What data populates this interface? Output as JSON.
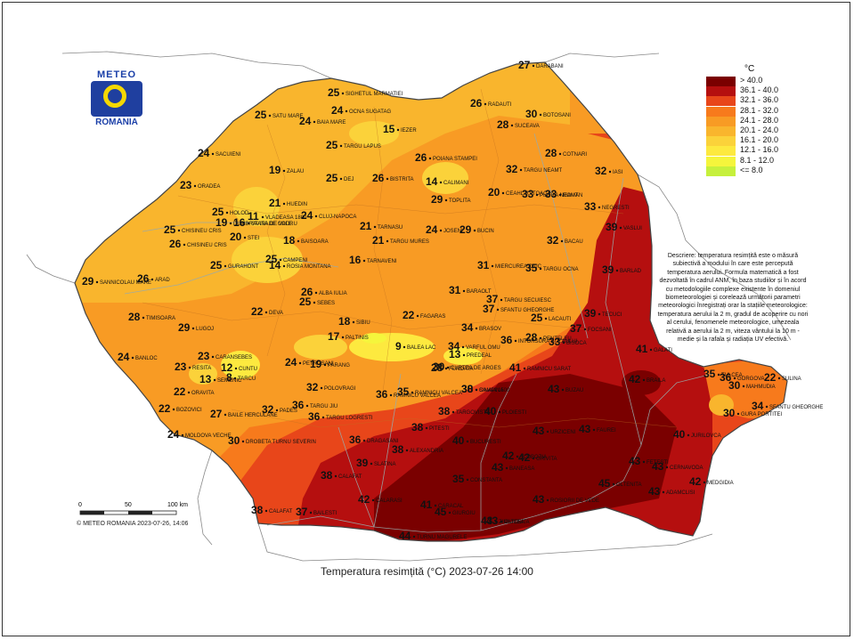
{
  "logo": {
    "top": "METEO",
    "bottom": "ROMANIA"
  },
  "legend": {
    "unit": "°C",
    "classes": [
      {
        "label": "> 40.0",
        "color": "#7a0000"
      },
      {
        "label": "36.1 - 40.0",
        "color": "#b50f0f"
      },
      {
        "label": "32.1 - 36.0",
        "color": "#e8461a"
      },
      {
        "label": "28.1 - 32.0",
        "color": "#f77a1c"
      },
      {
        "label": "24.1 - 28.0",
        "color": "#f89b24"
      },
      {
        "label": "20.1 - 24.0",
        "color": "#f9b52d"
      },
      {
        "label": "16.1 - 20.0",
        "color": "#fbd23a"
      },
      {
        "label": "12.1 - 16.0",
        "color": "#fde93f"
      },
      {
        "label": "8.1 - 12.0",
        "color": "#f5f53c"
      },
      {
        "label": "<= 8.0",
        "color": "#c6f03c"
      }
    ]
  },
  "description": "Descriere: temperatura resimțită este o măsură subiectivă a modului în care este percepută temperatura aerului. Formula matematică a fost dezvoltată în cadrul ANM, în baza studiilor și în acord cu metodologiile complexe existente în domeniul biometeorologiei și corelează următorii parametri meteorologici înregistrați orar la stațiile meteorologice: temperatura aerului la 2 m, gradul de acoperire cu nori al cerului, fenomenele meteorologice, umezeala relativă a aerului la 2 m, viteza vântului la 10 m - medie și la rafala și radiația UV efectivă.",
  "caption": "Temperatura resimțită (°C) 2023-07-26 14:00",
  "copyright": "© METEO ROMANIA 2023-07-26, 14:06",
  "scale_bar": {
    "ticks": [
      "0",
      "50",
      "100 km"
    ]
  },
  "stations": [
    {
      "v": "27",
      "name": "DARABANI"
    },
    {
      "v": "26",
      "name": "RADAUTI"
    },
    {
      "v": "30",
      "name": "BOTOSANI"
    },
    {
      "v": "28",
      "name": "SUCEAVA"
    },
    {
      "v": "25",
      "name": "SIGHETUL MARMATIEI"
    },
    {
      "v": "25",
      "name": "SATU MARE"
    },
    {
      "v": "24",
      "name": "BAIA MARE"
    },
    {
      "v": "24",
      "name": "OCNA SUGATAG"
    },
    {
      "v": "15",
      "name": "IEZER"
    },
    {
      "v": "25",
      "name": "TARGU LAPUS"
    },
    {
      "v": "26",
      "name": "POIANA STAMPEI"
    },
    {
      "v": "28",
      "name": "COTNARI"
    },
    {
      "v": "32",
      "name": "TARGU NEAMT"
    },
    {
      "v": "32",
      "name": "IASI"
    },
    {
      "v": "24",
      "name": "SACUIENI"
    },
    {
      "v": "19",
      "name": "ZALAU"
    },
    {
      "v": "25",
      "name": "DEJ"
    },
    {
      "v": "26",
      "name": "BISTRITA"
    },
    {
      "v": "14",
      "name": "CALIMANI"
    },
    {
      "v": "20",
      "name": "CEAHLAU TOACA"
    },
    {
      "v": "33",
      "name": "PIATRA NEAMT"
    },
    {
      "v": "33",
      "name": "ROMAN"
    },
    {
      "v": "23",
      "name": "ORADEA"
    },
    {
      "v": "21",
      "name": "HUEDIN"
    },
    {
      "v": "11",
      "name": "VLADEASA 1800"
    },
    {
      "v": "29",
      "name": "TOPLITA"
    },
    {
      "v": "33",
      "name": "NEGRESTI"
    },
    {
      "v": "25",
      "name": "HOLOD"
    },
    {
      "v": "19",
      "name": "DUMBRAVITA DE CODRU"
    },
    {
      "v": "16",
      "name": "STANA DE VALE"
    },
    {
      "v": "24",
      "name": "CLUJ-NAPOCA"
    },
    {
      "v": "21",
      "name": "TARNASU"
    },
    {
      "v": "24",
      "name": "JOSENI"
    },
    {
      "v": "29",
      "name": "BUCIN"
    },
    {
      "v": "39",
      "name": "VASLUI"
    },
    {
      "v": "25",
      "name": "CHISINEU CRIS"
    },
    {
      "v": "20",
      "name": "STEI"
    },
    {
      "v": "18",
      "name": "BAISOARA"
    },
    {
      "v": "21",
      "name": "TARGU MURES"
    },
    {
      "v": "32",
      "name": "BACAU"
    },
    {
      "v": "26",
      "name": "CHISINEU CRIS"
    },
    {
      "v": "25",
      "name": "GURAHONT"
    },
    {
      "v": "25",
      "name": "CAMPENI"
    },
    {
      "v": "14",
      "name": "ROSIA MONTANA"
    },
    {
      "v": "16",
      "name": "TARNAVENI"
    },
    {
      "v": "31",
      "name": "MIERCUREA CIUC"
    },
    {
      "v": "35",
      "name": "TARGU OCNA"
    },
    {
      "v": "39",
      "name": "BARLAD"
    },
    {
      "v": "29",
      "name": "SANNICOLAU MARE"
    },
    {
      "v": "26",
      "name": "ARAD"
    },
    {
      "v": "26",
      "name": "ALBA IULIA"
    },
    {
      "v": "25",
      "name": "SEBES"
    },
    {
      "v": "31",
      "name": "BARAOLT"
    },
    {
      "v": "37",
      "name": "TARGU SECUIESC"
    },
    {
      "v": "28",
      "name": "TIMISOARA"
    },
    {
      "v": "22",
      "name": "DEVA"
    },
    {
      "v": "22",
      "name": "FAGARAS"
    },
    {
      "v": "37",
      "name": "SFANTU GHEORGHE"
    },
    {
      "v": "25",
      "name": "LACAUTI"
    },
    {
      "v": "39",
      "name": "TECUCI"
    },
    {
      "v": "29",
      "name": "LUGOJ"
    },
    {
      "v": "18",
      "name": "SIBIU"
    },
    {
      "v": "17",
      "name": "PALTINIS"
    },
    {
      "v": "34",
      "name": "BRASOV"
    },
    {
      "v": "36",
      "name": "INTORSURA BUZAULUI"
    },
    {
      "v": "28",
      "name": "PENTELEU"
    },
    {
      "v": "33",
      "name": "BISOCA"
    },
    {
      "v": "37",
      "name": "FOCSANI"
    },
    {
      "v": "24",
      "name": "BANLOC"
    },
    {
      "v": "23",
      "name": "RESITA"
    },
    {
      "v": "23",
      "name": "CARANSEBES"
    },
    {
      "v": "9",
      "name": "BALEA LAC"
    },
    {
      "v": "34",
      "name": "VARFUL OMU"
    },
    {
      "v": "41",
      "name": "GALATI"
    },
    {
      "v": "13",
      "name": "SEMENIC"
    },
    {
      "v": "12",
      "name": "CUNTU"
    },
    {
      "v": "8",
      "name": "TARCU"
    },
    {
      "v": "24",
      "name": "PETROSANI"
    },
    {
      "v": "19",
      "name": "PARANG"
    },
    {
      "v": "30",
      "name": "CURTEA DE ARGES"
    },
    {
      "v": "28",
      "name": "FUNDATA"
    },
    {
      "v": "13",
      "name": "PREDEAL"
    },
    {
      "v": "30",
      "name": "SINAIA 1500"
    },
    {
      "v": "41",
      "name": "RAMNICU SARAT"
    },
    {
      "v": "42",
      "name": "BRAILA"
    },
    {
      "v": "35",
      "name": "TULCEA"
    },
    {
      "v": "36",
      "name": "GORGOVA"
    },
    {
      "v": "22",
      "name": "SULINA"
    },
    {
      "v": "30",
      "name": "MAHMUDIA"
    },
    {
      "v": "22",
      "name": "ORAVITA"
    },
    {
      "v": "32",
      "name": "POLOVRAGI"
    },
    {
      "v": "36",
      "name": "RAMNICU VALCEA"
    },
    {
      "v": "35",
      "name": "RAMNICU VALCEA"
    },
    {
      "v": "38",
      "name": "CAMPINA"
    },
    {
      "v": "43",
      "name": "BUZAU"
    },
    {
      "v": "22",
      "name": "BOZOVICI"
    },
    {
      "v": "27",
      "name": "BAILE HERCULANE"
    },
    {
      "v": "32",
      "name": "PADES"
    },
    {
      "v": "36",
      "name": "TARGU JIU"
    },
    {
      "v": "36",
      "name": "TARGU LOGRESTI"
    },
    {
      "v": "38",
      "name": "PITESTI"
    },
    {
      "v": "38",
      "name": "TARGOVISTE"
    },
    {
      "v": "40",
      "name": "PLOIESTI"
    },
    {
      "v": "43",
      "name": "URZICENI"
    },
    {
      "v": "43",
      "name": "FAUREI"
    },
    {
      "v": "34",
      "name": "SFANTU GHEORGHE"
    },
    {
      "v": "24",
      "name": "MOLDOVA VECHE"
    },
    {
      "v": "30",
      "name": "DROBETA TURNU SEVERIN"
    },
    {
      "v": "36",
      "name": "DRAGASANI"
    },
    {
      "v": "38",
      "name": "ALEXANDRIA"
    },
    {
      "v": "40",
      "name": "BUCURESTI"
    },
    {
      "v": "42",
      "name": "SLOBOZIA"
    },
    {
      "v": "42",
      "name": "GRIVITA"
    },
    {
      "v": "40",
      "name": "JURILOVCA"
    },
    {
      "v": "30",
      "name": "GURA PORTITEI"
    },
    {
      "v": "38",
      "name": "CALAFAT"
    },
    {
      "v": "39",
      "name": "SLATINA"
    },
    {
      "v": "43",
      "name": "BANEASA"
    },
    {
      "v": "43",
      "name": "FETESTI"
    },
    {
      "v": "43",
      "name": "CERNAVODA"
    },
    {
      "v": "42",
      "name": "MEDGIDIA"
    },
    {
      "v": "35",
      "name": "CONSTANTA"
    },
    {
      "v": "42",
      "name": "CALARASI"
    },
    {
      "v": "41",
      "name": "CARACAL"
    },
    {
      "v": "43",
      "name": "ROSIORII DE VEDE"
    },
    {
      "v": "43",
      "name": "OLTENITA"
    },
    {
      "v": "45",
      "name": "OLTENITA"
    },
    {
      "v": "43",
      "name": "ADAMCLISI"
    },
    {
      "v": "38",
      "name": "CALAFAT"
    },
    {
      "v": "37",
      "name": "BAILESTI"
    },
    {
      "v": "44",
      "name": "TURNU MAGURELE"
    },
    {
      "v": "45",
      "name": "GIURGIU"
    },
    {
      "v": "43",
      "name": "ZIMNICEA"
    }
  ]
}
